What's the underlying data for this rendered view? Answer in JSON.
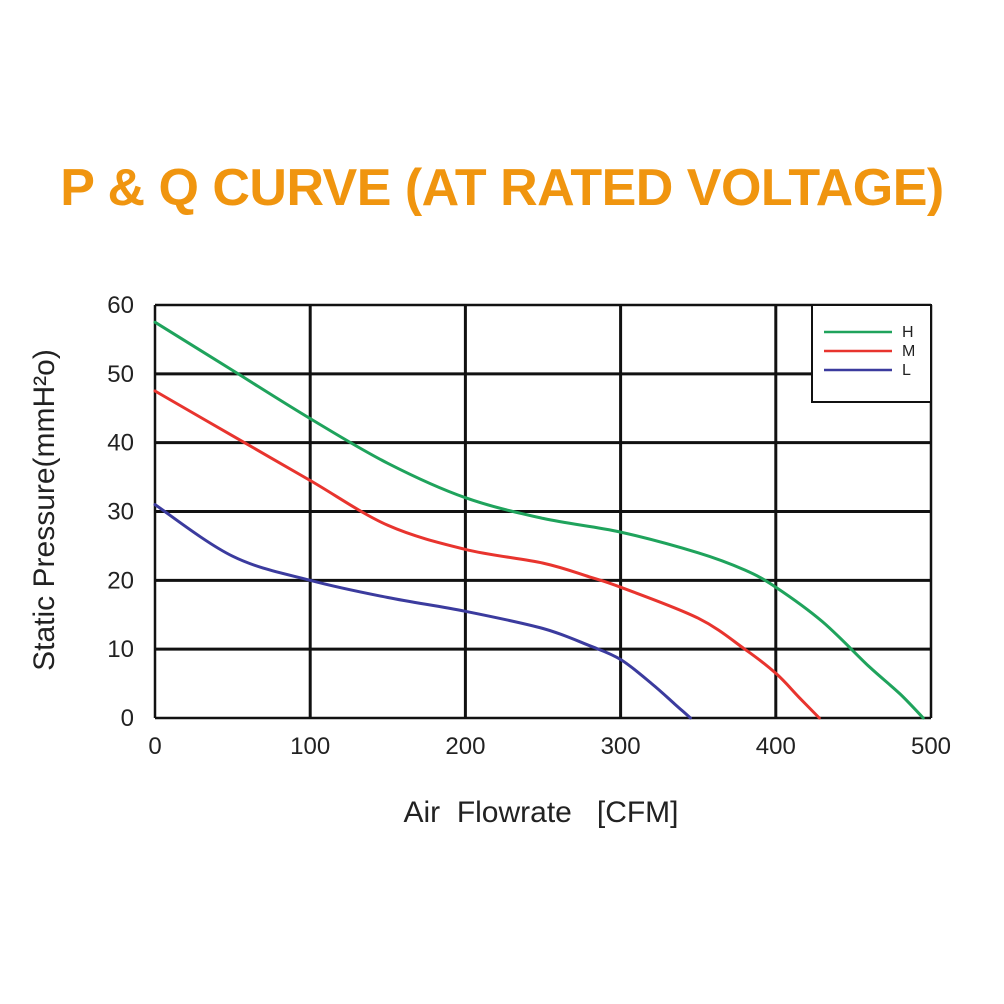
{
  "colors": {
    "title": "#f0950f",
    "H": "#1fa35c",
    "M": "#e8342e",
    "L": "#3b3b9e",
    "grid": "#111111"
  },
  "chart_data": {
    "type": "line",
    "title": "P & Q CURVE (AT RATED VOLTAGE)",
    "xlabel": "Air  Flowrate   [CFM]",
    "ylabel": "Static Pressure(mmH²o)",
    "xlim": [
      0,
      500
    ],
    "ylim": [
      0,
      60
    ],
    "xticks": [
      "0",
      "100",
      "200",
      "300",
      "400",
      "500"
    ],
    "yticks": [
      "0",
      "10",
      "20",
      "30",
      "40",
      "50",
      "60"
    ],
    "grid": true,
    "legend_position": "top-right",
    "series": [
      {
        "name": "H",
        "x": [
          0,
          50,
          100,
          150,
          200,
          250,
          300,
          350,
          380,
          400,
          430,
          460,
          480,
          495
        ],
        "y": [
          57.5,
          50.5,
          43.5,
          37,
          32,
          29,
          27,
          24,
          21.5,
          19,
          14,
          7.5,
          3.5,
          0
        ]
      },
      {
        "name": "M",
        "x": [
          0,
          50,
          100,
          150,
          200,
          250,
          280,
          300,
          350,
          380,
          400,
          415,
          428
        ],
        "y": [
          47.5,
          41,
          34.5,
          28,
          24.5,
          22.5,
          20.5,
          19,
          14.5,
          10,
          6.5,
          3,
          0
        ]
      },
      {
        "name": "L",
        "x": [
          0,
          50,
          100,
          150,
          200,
          250,
          280,
          300,
          320,
          335,
          345
        ],
        "y": [
          31,
          23.5,
          20,
          17.5,
          15.5,
          13,
          10.5,
          8.5,
          5,
          2,
          0
        ]
      }
    ]
  }
}
